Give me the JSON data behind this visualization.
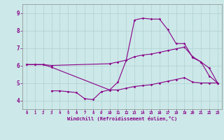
{
  "title": "",
  "xlabel": "Windchill (Refroidissement éolien,°C)",
  "ylabel": "",
  "bg_color": "#cce8e8",
  "line_color": "#880088",
  "xlim": [
    -0.5,
    23.5
  ],
  "ylim": [
    3.5,
    9.5
  ],
  "yticks": [
    4,
    5,
    6,
    7,
    8,
    9
  ],
  "xticks": [
    0,
    1,
    2,
    3,
    4,
    5,
    6,
    7,
    8,
    9,
    10,
    11,
    12,
    13,
    14,
    15,
    16,
    17,
    18,
    19,
    20,
    21,
    22,
    23
  ],
  "series1_x": [
    0,
    1,
    2,
    3,
    10,
    11,
    12,
    13,
    14,
    15,
    16,
    17,
    18,
    19,
    20,
    21,
    22,
    23
  ],
  "series1_y": [
    6.05,
    6.05,
    6.05,
    5.9,
    4.6,
    5.05,
    6.3,
    8.6,
    8.7,
    8.65,
    8.65,
    8.05,
    7.25,
    7.25,
    6.45,
    6.2,
    5.4,
    5.0
  ],
  "series2_x": [
    3,
    4,
    5,
    6,
    7,
    8,
    9,
    10,
    11,
    12,
    13,
    14,
    15,
    16,
    17,
    18,
    19,
    20,
    21,
    22,
    23
  ],
  "series2_y": [
    4.55,
    4.55,
    4.5,
    4.45,
    4.1,
    4.05,
    4.5,
    4.6,
    4.6,
    4.7,
    4.8,
    4.85,
    4.9,
    5.0,
    5.1,
    5.2,
    5.3,
    5.05,
    5.0,
    5.0,
    5.0
  ],
  "series3_x": [
    0,
    1,
    2,
    3,
    10,
    11,
    12,
    13,
    14,
    15,
    16,
    17,
    18,
    19,
    20,
    21,
    22,
    23
  ],
  "series3_y": [
    6.05,
    6.05,
    6.05,
    6.0,
    6.1,
    6.2,
    6.3,
    6.5,
    6.6,
    6.65,
    6.75,
    6.85,
    6.95,
    7.05,
    6.5,
    6.2,
    5.85,
    5.0
  ]
}
